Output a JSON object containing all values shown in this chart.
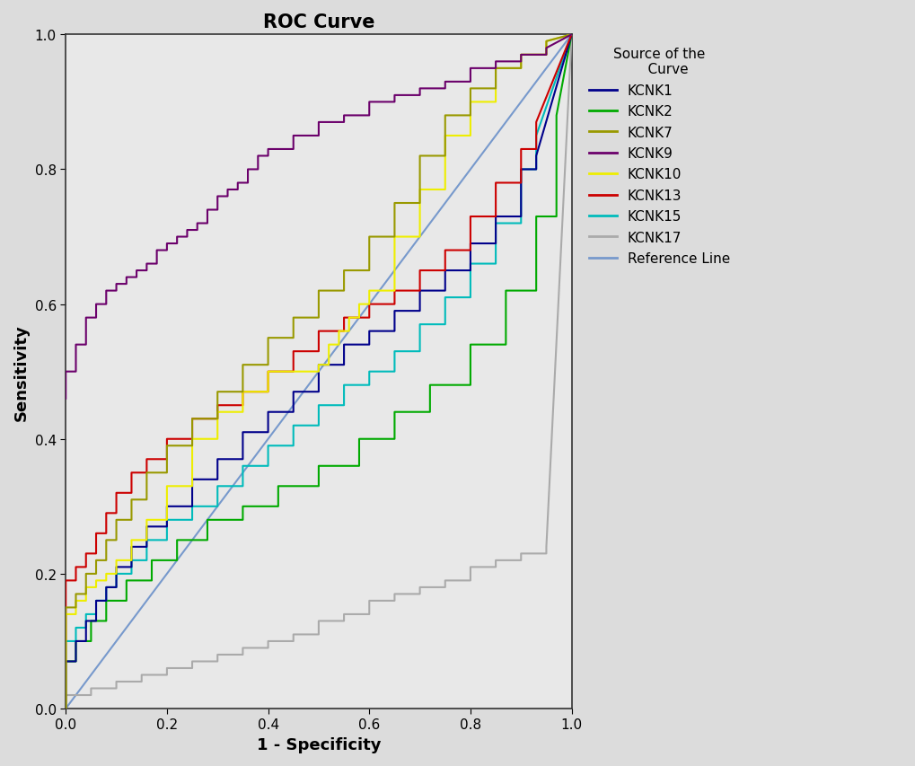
{
  "title": "ROC Curve",
  "xlabel": "1 - Specificity",
  "ylabel": "Sensitivity",
  "xlim": [
    0.0,
    1.0
  ],
  "ylim": [
    0.0,
    1.0
  ],
  "background_color": "#dcdcdc",
  "plot_bg_color": "#e8e8e8",
  "title_fontsize": 15,
  "label_fontsize": 13,
  "legend_title": "Source of the\n    Curve",
  "curves": {
    "KCNK9": {
      "color": "#6b006b",
      "x": [
        0.0,
        0.0,
        0.02,
        0.02,
        0.04,
        0.04,
        0.06,
        0.06,
        0.08,
        0.08,
        0.1,
        0.1,
        0.12,
        0.12,
        0.14,
        0.14,
        0.16,
        0.16,
        0.18,
        0.18,
        0.2,
        0.2,
        0.22,
        0.22,
        0.24,
        0.24,
        0.26,
        0.26,
        0.28,
        0.28,
        0.3,
        0.3,
        0.32,
        0.32,
        0.34,
        0.34,
        0.36,
        0.36,
        0.38,
        0.38,
        0.4,
        0.4,
        0.45,
        0.45,
        0.5,
        0.5,
        0.55,
        0.55,
        0.6,
        0.6,
        0.65,
        0.65,
        0.7,
        0.7,
        0.75,
        0.75,
        0.8,
        0.8,
        0.85,
        0.85,
        0.9,
        0.9,
        0.95,
        0.95,
        1.0
      ],
      "y": [
        0.46,
        0.5,
        0.5,
        0.54,
        0.54,
        0.58,
        0.58,
        0.6,
        0.6,
        0.62,
        0.62,
        0.63,
        0.63,
        0.64,
        0.64,
        0.65,
        0.65,
        0.66,
        0.66,
        0.68,
        0.68,
        0.69,
        0.69,
        0.7,
        0.7,
        0.71,
        0.71,
        0.72,
        0.72,
        0.74,
        0.74,
        0.76,
        0.76,
        0.77,
        0.77,
        0.78,
        0.78,
        0.8,
        0.8,
        0.82,
        0.82,
        0.83,
        0.83,
        0.85,
        0.85,
        0.87,
        0.87,
        0.88,
        0.88,
        0.9,
        0.9,
        0.91,
        0.91,
        0.92,
        0.92,
        0.93,
        0.93,
        0.95,
        0.95,
        0.96,
        0.96,
        0.97,
        0.97,
        0.98,
        1.0
      ]
    },
    "KCNK7": {
      "color": "#999900",
      "x": [
        0.0,
        0.0,
        0.02,
        0.02,
        0.04,
        0.04,
        0.06,
        0.06,
        0.08,
        0.08,
        0.1,
        0.1,
        0.13,
        0.13,
        0.16,
        0.16,
        0.2,
        0.2,
        0.25,
        0.25,
        0.3,
        0.3,
        0.35,
        0.35,
        0.4,
        0.4,
        0.45,
        0.45,
        0.5,
        0.5,
        0.55,
        0.55,
        0.6,
        0.6,
        0.65,
        0.65,
        0.7,
        0.7,
        0.75,
        0.75,
        0.8,
        0.8,
        0.85,
        0.85,
        0.9,
        0.9,
        0.95,
        0.95,
        1.0
      ],
      "y": [
        0.0,
        0.15,
        0.15,
        0.17,
        0.17,
        0.2,
        0.2,
        0.22,
        0.22,
        0.25,
        0.25,
        0.28,
        0.28,
        0.31,
        0.31,
        0.35,
        0.35,
        0.39,
        0.39,
        0.43,
        0.43,
        0.47,
        0.47,
        0.51,
        0.51,
        0.55,
        0.55,
        0.58,
        0.58,
        0.62,
        0.62,
        0.65,
        0.65,
        0.7,
        0.7,
        0.75,
        0.75,
        0.82,
        0.82,
        0.88,
        0.88,
        0.92,
        0.92,
        0.95,
        0.95,
        0.97,
        0.97,
        0.99,
        1.0
      ]
    },
    "KCNK10": {
      "color": "#eeee00",
      "x": [
        0.0,
        0.0,
        0.02,
        0.02,
        0.04,
        0.04,
        0.06,
        0.06,
        0.08,
        0.08,
        0.1,
        0.1,
        0.13,
        0.13,
        0.16,
        0.16,
        0.2,
        0.2,
        0.25,
        0.25,
        0.3,
        0.3,
        0.35,
        0.35,
        0.4,
        0.4,
        0.45,
        0.45,
        0.5,
        0.5,
        0.52,
        0.52,
        0.54,
        0.54,
        0.56,
        0.56,
        0.58,
        0.58,
        0.6,
        0.6,
        0.65,
        0.65,
        0.7,
        0.7,
        0.75,
        0.75,
        0.8,
        0.8,
        0.85,
        0.85,
        0.9,
        0.9,
        0.95,
        0.95,
        1.0
      ],
      "y": [
        0.0,
        0.14,
        0.14,
        0.16,
        0.16,
        0.18,
        0.18,
        0.19,
        0.19,
        0.2,
        0.2,
        0.22,
        0.22,
        0.25,
        0.25,
        0.28,
        0.28,
        0.33,
        0.33,
        0.4,
        0.4,
        0.44,
        0.44,
        0.47,
        0.47,
        0.5,
        0.5,
        0.5,
        0.5,
        0.51,
        0.51,
        0.54,
        0.54,
        0.56,
        0.56,
        0.58,
        0.58,
        0.6,
        0.6,
        0.62,
        0.62,
        0.7,
        0.7,
        0.77,
        0.77,
        0.85,
        0.85,
        0.9,
        0.9,
        0.95,
        0.95,
        0.97,
        0.97,
        0.99,
        1.0
      ]
    },
    "KCNK1": {
      "color": "#00008b",
      "x": [
        0.0,
        0.0,
        0.02,
        0.02,
        0.04,
        0.04,
        0.06,
        0.06,
        0.08,
        0.08,
        0.1,
        0.1,
        0.13,
        0.13,
        0.16,
        0.16,
        0.2,
        0.2,
        0.25,
        0.25,
        0.3,
        0.3,
        0.35,
        0.35,
        0.4,
        0.4,
        0.45,
        0.45,
        0.5,
        0.5,
        0.55,
        0.55,
        0.6,
        0.6,
        0.65,
        0.65,
        0.7,
        0.7,
        0.75,
        0.75,
        0.8,
        0.8,
        0.85,
        0.85,
        0.9,
        0.9,
        0.93,
        0.93,
        1.0
      ],
      "y": [
        0.0,
        0.07,
        0.07,
        0.1,
        0.1,
        0.13,
        0.13,
        0.16,
        0.16,
        0.18,
        0.18,
        0.21,
        0.21,
        0.24,
        0.24,
        0.27,
        0.27,
        0.3,
        0.3,
        0.34,
        0.34,
        0.37,
        0.37,
        0.41,
        0.41,
        0.44,
        0.44,
        0.47,
        0.47,
        0.51,
        0.51,
        0.54,
        0.54,
        0.56,
        0.56,
        0.59,
        0.59,
        0.62,
        0.62,
        0.65,
        0.65,
        0.69,
        0.69,
        0.73,
        0.73,
        0.8,
        0.8,
        0.82,
        1.0
      ]
    },
    "KCNK13": {
      "color": "#cc0000",
      "x": [
        0.0,
        0.0,
        0.02,
        0.02,
        0.04,
        0.04,
        0.06,
        0.06,
        0.08,
        0.08,
        0.1,
        0.1,
        0.13,
        0.13,
        0.16,
        0.16,
        0.2,
        0.2,
        0.25,
        0.25,
        0.3,
        0.3,
        0.35,
        0.35,
        0.4,
        0.4,
        0.45,
        0.45,
        0.5,
        0.5,
        0.55,
        0.55,
        0.6,
        0.6,
        0.65,
        0.65,
        0.7,
        0.7,
        0.75,
        0.75,
        0.8,
        0.8,
        0.85,
        0.85,
        0.9,
        0.9,
        0.93,
        0.93,
        1.0
      ],
      "y": [
        0.0,
        0.19,
        0.19,
        0.21,
        0.21,
        0.23,
        0.23,
        0.26,
        0.26,
        0.29,
        0.29,
        0.32,
        0.32,
        0.35,
        0.35,
        0.37,
        0.37,
        0.4,
        0.4,
        0.43,
        0.43,
        0.45,
        0.45,
        0.47,
        0.47,
        0.5,
        0.5,
        0.53,
        0.53,
        0.56,
        0.56,
        0.58,
        0.58,
        0.6,
        0.6,
        0.62,
        0.62,
        0.65,
        0.65,
        0.68,
        0.68,
        0.73,
        0.73,
        0.78,
        0.78,
        0.83,
        0.83,
        0.87,
        1.0
      ]
    },
    "KCNK15": {
      "color": "#00bbbb",
      "x": [
        0.0,
        0.0,
        0.02,
        0.02,
        0.04,
        0.04,
        0.06,
        0.06,
        0.08,
        0.08,
        0.1,
        0.1,
        0.13,
        0.13,
        0.16,
        0.16,
        0.2,
        0.2,
        0.25,
        0.25,
        0.3,
        0.3,
        0.35,
        0.35,
        0.4,
        0.4,
        0.45,
        0.45,
        0.5,
        0.5,
        0.55,
        0.55,
        0.6,
        0.6,
        0.65,
        0.65,
        0.7,
        0.7,
        0.75,
        0.75,
        0.8,
        0.8,
        0.85,
        0.85,
        0.9,
        0.9,
        0.93,
        0.93,
        1.0
      ],
      "y": [
        0.0,
        0.1,
        0.1,
        0.12,
        0.12,
        0.14,
        0.14,
        0.16,
        0.16,
        0.18,
        0.18,
        0.2,
        0.2,
        0.22,
        0.22,
        0.25,
        0.25,
        0.28,
        0.28,
        0.3,
        0.3,
        0.33,
        0.33,
        0.36,
        0.36,
        0.39,
        0.39,
        0.42,
        0.42,
        0.45,
        0.45,
        0.48,
        0.48,
        0.5,
        0.5,
        0.53,
        0.53,
        0.57,
        0.57,
        0.61,
        0.61,
        0.66,
        0.66,
        0.72,
        0.72,
        0.8,
        0.8,
        0.85,
        1.0
      ]
    },
    "KCNK2": {
      "color": "#00aa00",
      "x": [
        0.0,
        0.0,
        0.02,
        0.02,
        0.05,
        0.05,
        0.08,
        0.08,
        0.12,
        0.12,
        0.17,
        0.17,
        0.22,
        0.22,
        0.28,
        0.28,
        0.35,
        0.35,
        0.42,
        0.42,
        0.5,
        0.5,
        0.58,
        0.58,
        0.65,
        0.65,
        0.72,
        0.72,
        0.8,
        0.8,
        0.87,
        0.87,
        0.93,
        0.93,
        0.97,
        0.97,
        1.0
      ],
      "y": [
        0.0,
        0.07,
        0.07,
        0.1,
        0.1,
        0.13,
        0.13,
        0.16,
        0.16,
        0.19,
        0.19,
        0.22,
        0.22,
        0.25,
        0.25,
        0.28,
        0.28,
        0.3,
        0.3,
        0.33,
        0.33,
        0.36,
        0.36,
        0.4,
        0.4,
        0.44,
        0.44,
        0.48,
        0.48,
        0.54,
        0.54,
        0.62,
        0.62,
        0.73,
        0.73,
        0.88,
        1.0
      ]
    },
    "KCNK17": {
      "color": "#aaaaaa",
      "x": [
        0.0,
        0.0,
        0.05,
        0.05,
        0.1,
        0.1,
        0.15,
        0.15,
        0.2,
        0.2,
        0.25,
        0.25,
        0.3,
        0.3,
        0.35,
        0.35,
        0.4,
        0.4,
        0.45,
        0.45,
        0.5,
        0.5,
        0.55,
        0.55,
        0.6,
        0.6,
        0.65,
        0.65,
        0.7,
        0.7,
        0.75,
        0.75,
        0.8,
        0.8,
        0.85,
        0.85,
        0.9,
        0.9,
        0.95,
        0.95,
        1.0
      ],
      "y": [
        0.0,
        0.02,
        0.02,
        0.03,
        0.03,
        0.04,
        0.04,
        0.05,
        0.05,
        0.06,
        0.06,
        0.07,
        0.07,
        0.08,
        0.08,
        0.09,
        0.09,
        0.1,
        0.1,
        0.11,
        0.11,
        0.13,
        0.13,
        0.14,
        0.14,
        0.16,
        0.16,
        0.17,
        0.17,
        0.18,
        0.18,
        0.19,
        0.19,
        0.21,
        0.21,
        0.22,
        0.22,
        0.23,
        0.23,
        0.24,
        1.0
      ]
    },
    "Reference": {
      "color": "#7799cc",
      "x": [
        0.0,
        1.0
      ],
      "y": [
        0.0,
        1.0
      ]
    }
  },
  "curve_order": [
    "KCNK17",
    "KCNK2",
    "KCNK15",
    "KCNK1",
    "KCNK13",
    "KCNK10",
    "KCNK7",
    "Reference",
    "KCNK9"
  ],
  "legend_order": [
    "KCNK1",
    "KCNK2",
    "KCNK7",
    "KCNK9",
    "KCNK10",
    "KCNK13",
    "KCNK15",
    "KCNK17",
    "Reference Line"
  ]
}
